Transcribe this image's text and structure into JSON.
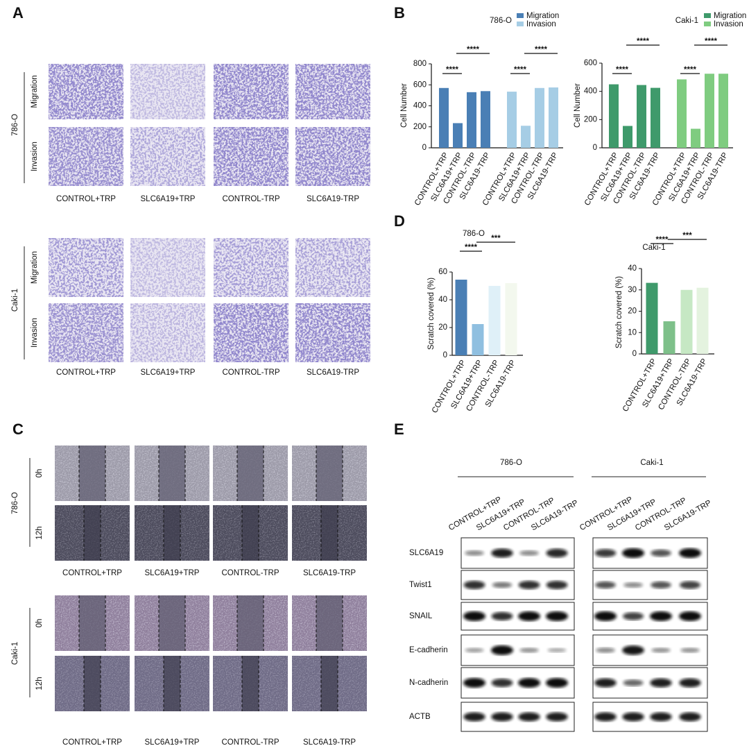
{
  "panel_labels": [
    "A",
    "B",
    "C",
    "D",
    "E"
  ],
  "panel_a": {
    "cell_lines": [
      "786-O",
      "Caki-1"
    ],
    "rows": [
      "Migration",
      "Invasion"
    ],
    "columns": [
      "CONTROL+TRP",
      "SLC6A19+TRP",
      "CONTROL-TRP",
      "SLC6A19-TRP"
    ]
  },
  "panel_c": {
    "cell_lines": [
      "786-O",
      "Caki-1"
    ],
    "rows": [
      "0h",
      "12h"
    ],
    "columns": [
      "CONTROL+TRP",
      "SLC6A19+TRP",
      "CONTROL-TRP",
      "SLC6A19-TRP"
    ]
  },
  "panel_e": {
    "cell_lines": [
      "786-O",
      "Caki-1"
    ],
    "lanes": [
      "CONTROL+TRP",
      "SLC6A19+TRP",
      "CONTROL-TRP",
      "SLC6A19-TRP"
    ],
    "proteins": [
      "SLC6A19",
      "Twist1",
      "SNAIL",
      "E-cadherin",
      "N-cadherin",
      "ACTB"
    ]
  },
  "chart_data": [
    {
      "type": "bar",
      "title": "786-O",
      "y_label": "Cell Number",
      "ylim": [
        0,
        800
      ],
      "yticks": [
        0,
        200,
        400,
        600,
        800
      ],
      "categories": [
        "CONTROL+TRP",
        "SLC6A19+TRP",
        "CONTROL-TRP",
        "SLC6A19-TRP",
        "CONTROL+TRP",
        "SLC6A19+TRP",
        "CONTROL-TRP",
        "SLC6A19-TRP"
      ],
      "series": [
        {
          "name": "Migration",
          "color": "#4a7fb5",
          "values": [
            570,
            235,
            530,
            540,
            null,
            null,
            null,
            null
          ]
        },
        {
          "name": "Invasion",
          "color": "#a6cde5",
          "values": [
            null,
            null,
            null,
            null,
            535,
            210,
            570,
            575
          ]
        }
      ],
      "annotations": [
        "****",
        "****",
        "****",
        "****"
      ]
    },
    {
      "type": "bar",
      "title": "Caki-1",
      "y_label": "Cell Number",
      "ylim": [
        0,
        600
      ],
      "yticks": [
        0,
        200,
        400,
        600
      ],
      "categories": [
        "CONTROL+TRP",
        "SLC6A19+TRP",
        "CONTROL-TRP",
        "SLC6A19-TRP",
        "CONTROL+TRP",
        "SLC6A19+TRP",
        "CONTROL-TRP",
        "SLC6A19-TRP"
      ],
      "series": [
        {
          "name": "Migration",
          "color": "#3f9a6b",
          "values": [
            450,
            155,
            445,
            425,
            null,
            null,
            null,
            null
          ]
        },
        {
          "name": "Invasion",
          "color": "#7fcc80",
          "values": [
            null,
            null,
            null,
            null,
            485,
            135,
            525,
            525
          ]
        }
      ],
      "annotations": [
        "****",
        "****",
        "****",
        "****"
      ]
    },
    {
      "type": "bar",
      "title": "786-O",
      "y_label": "Scratch covered  (%)",
      "ylim": [
        0,
        60
      ],
      "yticks": [
        0,
        20,
        40,
        60
      ],
      "categories": [
        "CONTROL+TRP",
        "SLC6A19+TRP",
        "CONTROL-TRP",
        "SLC6A19-TRP"
      ],
      "values": [
        54.5,
        22.5,
        50,
        52
      ],
      "colors": [
        "#4a7fb5",
        "#8fbfe0",
        "#dff0f8",
        "#f3f8ee"
      ],
      "annotations": [
        "****",
        "***"
      ]
    },
    {
      "type": "bar",
      "title": "Caki-1",
      "y_label": "Scratch covered  (%)",
      "ylim": [
        0,
        40
      ],
      "yticks": [
        0,
        10,
        20,
        30,
        40
      ],
      "categories": [
        "CONTROL+TRP",
        "SLC6A19+TRP",
        "CONTROL-TRP",
        "SLC6A19-TRP"
      ],
      "values": [
        33.3,
        15.3,
        30,
        31
      ],
      "colors": [
        "#3f9a6b",
        "#7ec08a",
        "#c6e8c4",
        "#e4f3df"
      ],
      "annotations": [
        "****",
        "***"
      ]
    }
  ]
}
